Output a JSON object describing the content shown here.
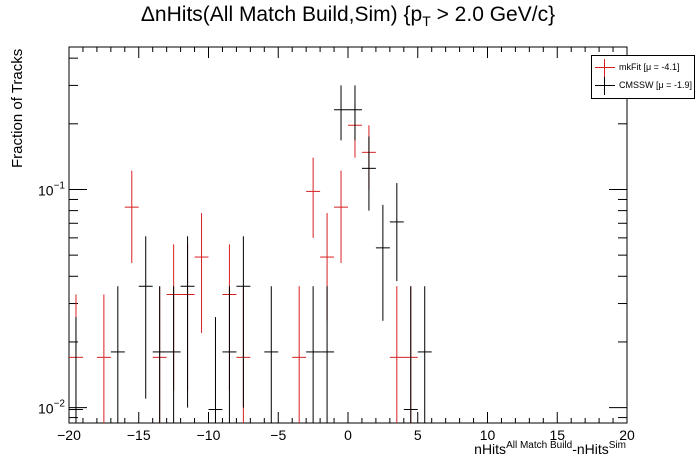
{
  "chart_data": {
    "type": "scatter",
    "title_main": "ΔnHits(All Match Build,Sim) {p",
    "title_sub": "T",
    "title_tail": " > 2.0 GeV/c}",
    "ylabel": "Fraction of Tracks",
    "xlabel_a": "nHits",
    "xlabel_a_sup": "All Match Build",
    "xlabel_b": "-nHits",
    "xlabel_b_sup": "Sim",
    "xlim": [
      -20,
      20
    ],
    "ylim": [
      0.0085,
      0.45
    ],
    "yscale": "log",
    "grid": false,
    "legend_position": "top-right",
    "x_ticks": [
      "−20",
      "−15",
      "−10",
      "−5",
      "0",
      "5",
      "10",
      "15",
      "20"
    ],
    "y_tick_labels": [
      {
        "value": 0.1,
        "base": "10",
        "exp": "−1"
      },
      {
        "value": 0.01,
        "base": "10",
        "exp": "−2"
      }
    ],
    "series": [
      {
        "name": "mkFit  [μ = -4.1]",
        "color": "#d62020",
        "points": [
          {
            "x": -19.5,
            "y": 0.017,
            "lo": 0.008,
            "hi": 0.033
          },
          {
            "x": -17.5,
            "y": 0.017,
            "lo": 0.008,
            "hi": 0.033
          },
          {
            "x": -15.5,
            "y": 0.083,
            "lo": 0.046,
            "hi": 0.122
          },
          {
            "x": -13.5,
            "y": 0.017,
            "lo": 0.008,
            "hi": 0.036
          },
          {
            "x": -12.5,
            "y": 0.033,
            "lo": 0.012,
            "hi": 0.056
          },
          {
            "x": -11.5,
            "y": 0.033,
            "lo": 0.012,
            "hi": 0.056
          },
          {
            "x": -10.5,
            "y": 0.049,
            "lo": 0.022,
            "hi": 0.078
          },
          {
            "x": -8.5,
            "y": 0.033,
            "lo": 0.012,
            "hi": 0.056
          },
          {
            "x": -7.5,
            "y": 0.017,
            "lo": 0.008,
            "hi": 0.036
          },
          {
            "x": -3.5,
            "y": 0.017,
            "lo": 0.008,
            "hi": 0.036
          },
          {
            "x": -2.5,
            "y": 0.098,
            "lo": 0.06,
            "hi": 0.14
          },
          {
            "x": -1.5,
            "y": 0.049,
            "lo": 0.025,
            "hi": 0.078
          },
          {
            "x": -0.5,
            "y": 0.083,
            "lo": 0.046,
            "hi": 0.122
          },
          {
            "x": 0.5,
            "y": 0.197,
            "lo": 0.14,
            "hi": 0.245
          },
          {
            "x": 1.5,
            "y": 0.148,
            "lo": 0.1,
            "hi": 0.197
          },
          {
            "x": 3.5,
            "y": 0.017,
            "lo": 0.008,
            "hi": 0.036
          },
          {
            "x": 4.5,
            "y": 0.017,
            "lo": 0.008,
            "hi": 0.036
          }
        ]
      },
      {
        "name": "CMSSW  [μ = -1.9]",
        "color": "#000000",
        "points": [
          {
            "x": -19.5,
            "y": 0.0098,
            "lo": 0.008,
            "hi": 0.026
          },
          {
            "x": -16.5,
            "y": 0.018,
            "lo": 0.008,
            "hi": 0.036
          },
          {
            "x": -14.5,
            "y": 0.036,
            "lo": 0.011,
            "hi": 0.061
          },
          {
            "x": -13.5,
            "y": 0.018,
            "lo": 0.008,
            "hi": 0.036
          },
          {
            "x": -12.5,
            "y": 0.018,
            "lo": 0.008,
            "hi": 0.036
          },
          {
            "x": -11.5,
            "y": 0.036,
            "lo": 0.01,
            "hi": 0.061
          },
          {
            "x": -9.5,
            "y": 0.0098,
            "lo": 0.008,
            "hi": 0.026
          },
          {
            "x": -8.5,
            "y": 0.018,
            "lo": 0.008,
            "hi": 0.036
          },
          {
            "x": -7.5,
            "y": 0.036,
            "lo": 0.01,
            "hi": 0.061
          },
          {
            "x": -5.5,
            "y": 0.018,
            "lo": 0.008,
            "hi": 0.036
          },
          {
            "x": -2.5,
            "y": 0.018,
            "lo": 0.008,
            "hi": 0.036
          },
          {
            "x": -1.5,
            "y": 0.018,
            "lo": 0.008,
            "hi": 0.036
          },
          {
            "x": -0.5,
            "y": 0.232,
            "lo": 0.168,
            "hi": 0.3
          },
          {
            "x": 0.5,
            "y": 0.232,
            "lo": 0.168,
            "hi": 0.3
          },
          {
            "x": 1.5,
            "y": 0.125,
            "lo": 0.08,
            "hi": 0.175
          },
          {
            "x": 2.5,
            "y": 0.054,
            "lo": 0.025,
            "hi": 0.085
          },
          {
            "x": 3.5,
            "y": 0.071,
            "lo": 0.038,
            "hi": 0.107
          },
          {
            "x": 4.5,
            "y": 0.0098,
            "lo": 0.008,
            "hi": 0.036
          },
          {
            "x": 5.5,
            "y": 0.018,
            "lo": 0.008,
            "hi": 0.036
          }
        ]
      }
    ]
  }
}
